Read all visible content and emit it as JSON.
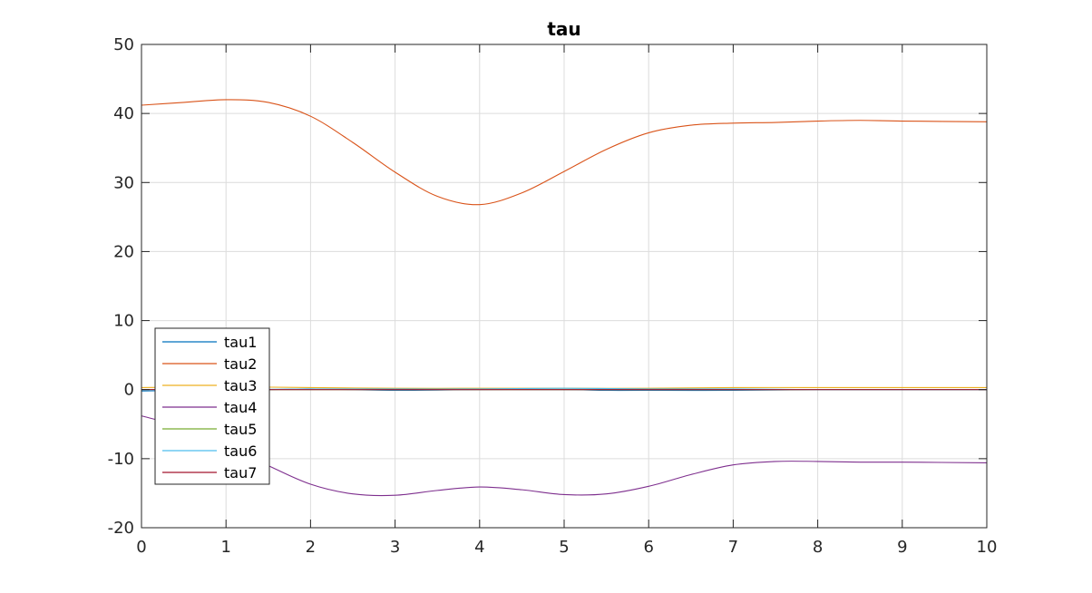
{
  "chart_data": {
    "type": "line",
    "title": "tau",
    "xlabel": "",
    "ylabel": "",
    "xlim": [
      0,
      10
    ],
    "ylim": [
      -20,
      50
    ],
    "xticks": [
      0,
      1,
      2,
      3,
      4,
      5,
      6,
      7,
      8,
      9,
      10
    ],
    "yticks": [
      -20,
      -10,
      0,
      10,
      20,
      30,
      40,
      50
    ],
    "xtick_labels": [
      "0",
      "1",
      "2",
      "3",
      "4",
      "5",
      "6",
      "7",
      "8",
      "9",
      "10"
    ],
    "ytick_labels": [
      "-20",
      "-10",
      "0",
      "10",
      "20",
      "30",
      "40",
      "50"
    ],
    "grid": true,
    "legend_position": "bottom-left",
    "series": [
      {
        "name": "tau1",
        "color": "#0072bd",
        "x": [
          0,
          0.5,
          1,
          1.5,
          2,
          3,
          4,
          5,
          5.5,
          6,
          7,
          8,
          9,
          10
        ],
        "y": [
          -0.2,
          -0.1,
          0.0,
          0.0,
          0.1,
          -0.1,
          0.0,
          0.0,
          -0.1,
          -0.1,
          -0.1,
          0.0,
          0.0,
          0.0
        ]
      },
      {
        "name": "tau2",
        "color": "#d95319",
        "x": [
          0,
          0.5,
          1,
          1.5,
          2,
          2.5,
          3,
          3.5,
          4,
          4.5,
          5,
          5.5,
          6,
          6.5,
          7,
          7.5,
          8,
          8.5,
          9,
          10
        ],
        "y": [
          41.2,
          41.6,
          42.0,
          41.6,
          39.6,
          35.8,
          31.5,
          28.0,
          26.8,
          28.5,
          31.6,
          34.8,
          37.2,
          38.3,
          38.6,
          38.7,
          38.9,
          39.0,
          38.9,
          38.8
        ]
      },
      {
        "name": "tau3",
        "color": "#edb120",
        "x": [
          0,
          1,
          2,
          3,
          4,
          5,
          6,
          7,
          8,
          9,
          10
        ],
        "y": [
          0.3,
          0.4,
          0.3,
          0.2,
          0.2,
          0.2,
          0.2,
          0.3,
          0.3,
          0.3,
          0.3
        ]
      },
      {
        "name": "tau4",
        "color": "#7e2f8e",
        "x": [
          0,
          0.5,
          1,
          1.5,
          2,
          2.5,
          3,
          3.5,
          4,
          4.5,
          5,
          5.5,
          6,
          6.5,
          7,
          7.5,
          8,
          8.5,
          9,
          10
        ],
        "y": [
          -3.8,
          -5.5,
          -8.0,
          -11.0,
          -13.7,
          -15.1,
          -15.3,
          -14.6,
          -14.1,
          -14.5,
          -15.2,
          -15.1,
          -14.0,
          -12.3,
          -10.9,
          -10.4,
          -10.4,
          -10.5,
          -10.5,
          -10.6
        ]
      },
      {
        "name": "tau5",
        "color": "#77ac30",
        "x": [
          0,
          2,
          4,
          6,
          8,
          10
        ],
        "y": [
          0.0,
          0.0,
          0.0,
          0.0,
          0.0,
          0.0
        ]
      },
      {
        "name": "tau6",
        "color": "#4dbeee",
        "x": [
          0,
          1,
          2,
          3,
          4,
          5,
          6,
          7,
          8,
          9,
          10
        ],
        "y": [
          -0.1,
          0.0,
          0.1,
          0.1,
          0.1,
          0.2,
          0.1,
          0.1,
          0.0,
          0.0,
          0.0
        ]
      },
      {
        "name": "tau7",
        "color": "#a2142f",
        "x": [
          0,
          2,
          4,
          6,
          8,
          10
        ],
        "y": [
          0.0,
          0.0,
          0.0,
          0.0,
          0.0,
          0.0
        ]
      }
    ]
  }
}
